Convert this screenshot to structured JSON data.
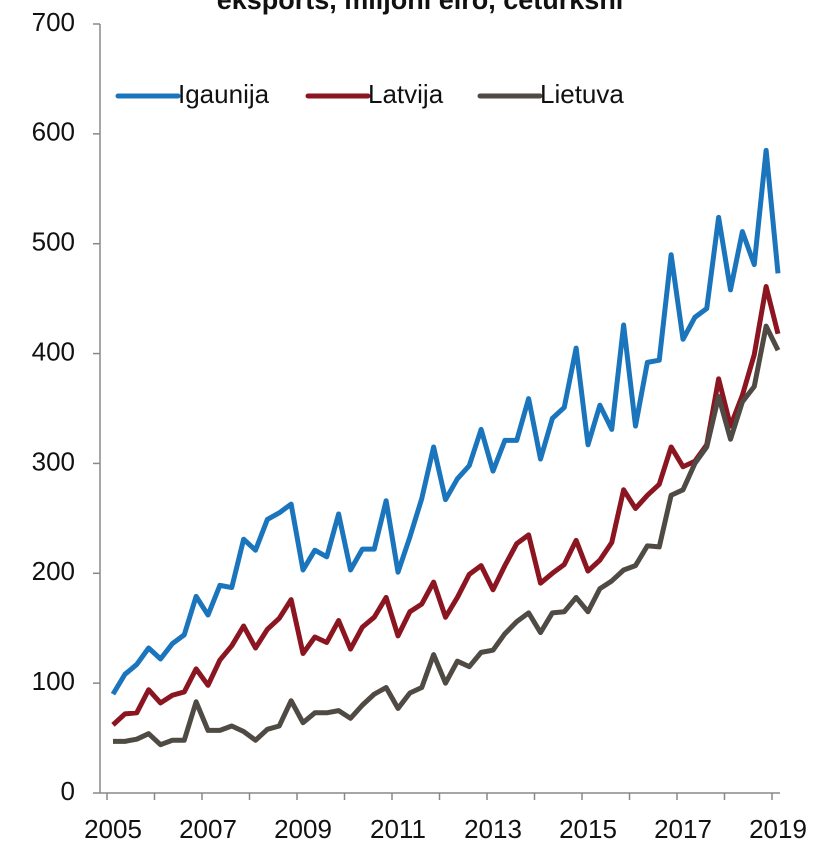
{
  "chart_data": {
    "type": "line",
    "title": "eksports, miljoni eiro, ceturksnī",
    "categories": [
      "2005",
      null,
      null,
      null,
      null,
      null,
      null,
      null,
      "2007",
      null,
      null,
      null,
      null,
      null,
      null,
      null,
      "2009",
      null,
      null,
      null,
      null,
      null,
      null,
      null,
      "2011",
      null,
      null,
      null,
      null,
      null,
      null,
      null,
      "2013",
      null,
      null,
      null,
      null,
      null,
      null,
      null,
      "2015",
      null,
      null,
      null,
      null,
      null,
      null,
      null,
      "2017",
      null,
      null,
      null,
      null,
      null,
      null,
      null,
      "2019"
    ],
    "series": [
      {
        "name": "Igaunija",
        "color": "#1b75bc",
        "values": [
          90,
          108,
          117,
          132,
          122,
          136,
          144,
          179,
          162,
          189,
          187,
          231,
          221,
          249,
          255,
          263,
          203,
          221,
          215,
          254,
          203,
          222,
          222,
          266,
          201,
          233,
          268,
          315,
          267,
          286,
          298,
          331,
          293,
          321,
          321,
          359,
          304,
          341,
          351,
          405,
          317,
          353,
          331,
          426,
          334,
          392,
          394,
          490,
          413,
          433,
          441,
          524,
          458,
          511,
          481,
          585,
          473
        ]
      },
      {
        "name": "Latvija",
        "color": "#8b1520",
        "values": [
          62,
          72,
          73,
          94,
          82,
          89,
          92,
          113,
          98,
          121,
          134,
          152,
          132,
          149,
          159,
          176,
          127,
          142,
          137,
          157,
          131,
          151,
          160,
          178,
          143,
          165,
          172,
          192,
          160,
          178,
          199,
          207,
          185,
          207,
          227,
          235,
          191,
          200,
          208,
          230,
          202,
          212,
          228,
          276,
          259,
          271,
          281,
          315,
          297,
          302,
          317,
          377,
          334,
          362,
          399,
          461,
          418
        ]
      },
      {
        "name": "Lietuva",
        "color": "#4f4a43",
        "values": [
          47,
          47,
          49,
          54,
          44,
          48,
          48,
          83,
          57,
          57,
          61,
          56,
          48,
          58,
          61,
          84,
          64,
          73,
          73,
          75,
          68,
          80,
          90,
          96,
          77,
          91,
          96,
          126,
          100,
          120,
          115,
          128,
          130,
          145,
          156,
          164,
          146,
          164,
          165,
          178,
          165,
          186,
          193,
          203,
          207,
          225,
          224,
          271,
          276,
          300,
          315,
          361,
          322,
          356,
          370,
          425,
          403
        ]
      }
    ],
    "ylim": [
      0,
      700
    ],
    "yticks": [
      0,
      100,
      200,
      300,
      400,
      500,
      600,
      700
    ],
    "grid": false,
    "legend": "top-left"
  }
}
